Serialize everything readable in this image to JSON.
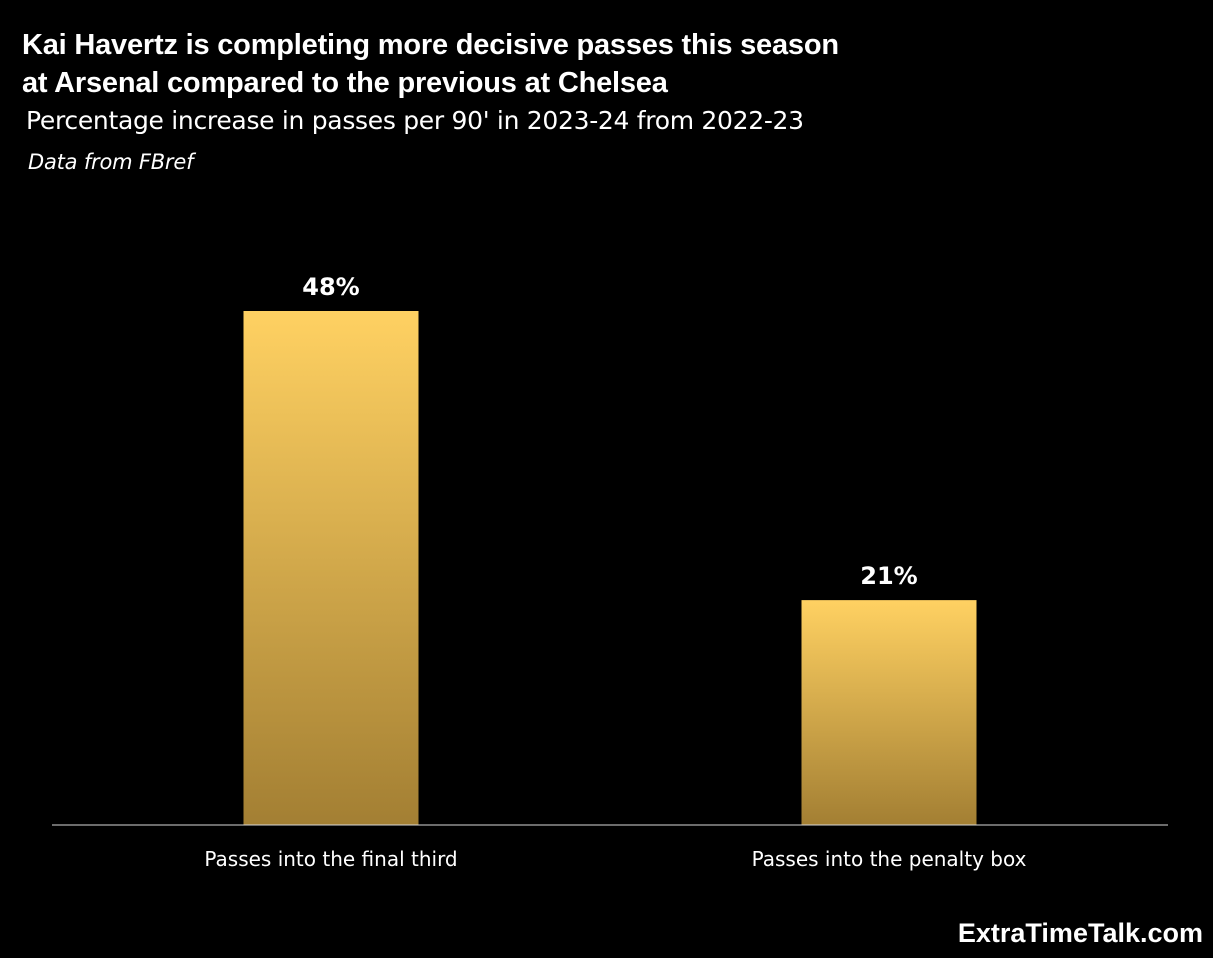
{
  "header": {
    "title_line1": "Kai Havertz is completing more decisive passes this season",
    "title_line2": "at Arsenal compared to the previous at Chelsea",
    "subtitle": "Percentage increase in passes per 90' in 2023-24 from 2022-23",
    "source": "Data from FBref"
  },
  "footer": {
    "brand": "ExtraTimeTalk.com"
  },
  "colors": {
    "bar_top": "#FFD162",
    "bar_bottom": "#A37F33",
    "axis": "#D9D9D9"
  },
  "chart_data": {
    "type": "bar",
    "title": "Kai Havertz is completing more decisive passes this season at Arsenal compared to the previous at Chelsea",
    "subtitle": "Percentage increase in passes per 90' in 2023-24 from 2022-23",
    "categories": [
      "Passes into the final third",
      "Passes into the penalty box"
    ],
    "values": [
      48,
      21
    ],
    "data_labels": [
      "48%",
      "21%"
    ],
    "xlabel": "",
    "ylabel": "",
    "ylim": [
      0,
      48
    ],
    "grid": false,
    "legend": "none"
  }
}
